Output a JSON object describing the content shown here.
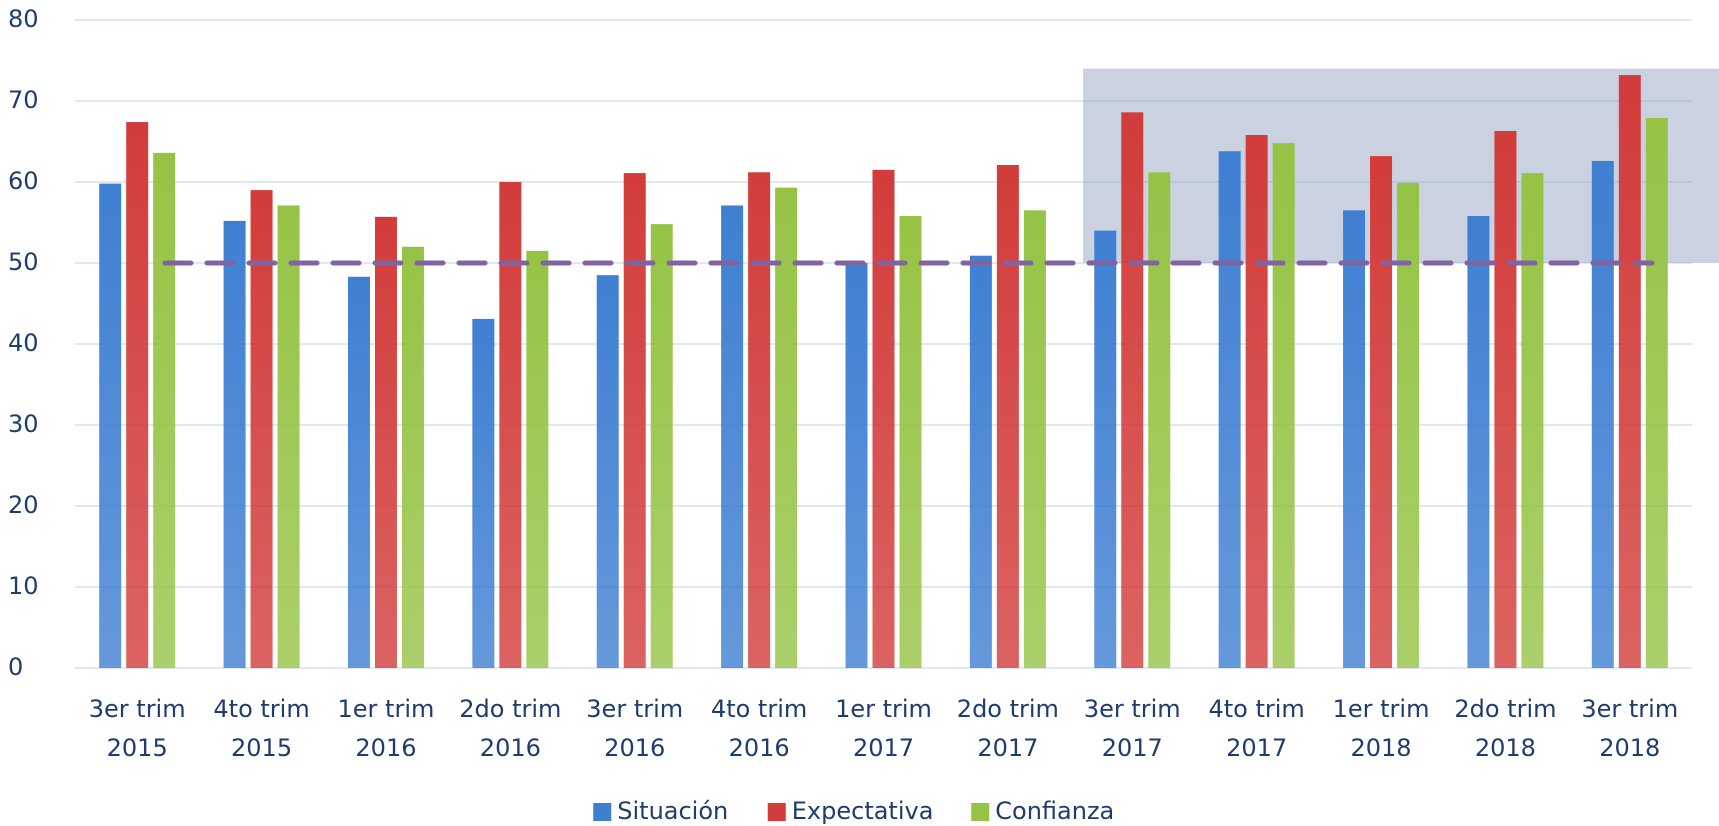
{
  "chart_data": {
    "type": "bar",
    "categories": [
      "3er trim 2015",
      "4to trim 2015",
      "1er trim 2016",
      "2do trim 2016",
      "3er trim 2016",
      "4to trim 2016",
      "1er trim 2017",
      "2do trim 2017",
      "3er trim 2017",
      "4to trim 2017",
      "1er trim 2018",
      "2do trim 2018",
      "3er trim 2018"
    ],
    "series": [
      {
        "name": "Situación",
        "color": "#3f7fd2",
        "values": [
          59.8,
          55.2,
          48.3,
          43.1,
          48.5,
          57.1,
          50.0,
          50.9,
          54.0,
          63.8,
          56.5,
          55.8,
          62.6
        ]
      },
      {
        "name": "Expectativa",
        "color": "#d23c3a",
        "values": [
          67.4,
          59.0,
          55.7,
          60.0,
          61.1,
          61.2,
          61.5,
          62.1,
          68.6,
          65.8,
          63.2,
          66.3,
          73.2
        ]
      },
      {
        "name": "Confianza",
        "color": "#96c345",
        "values": [
          63.6,
          57.1,
          52.0,
          51.5,
          54.8,
          59.3,
          55.8,
          56.5,
          61.2,
          64.8,
          59.9,
          61.1,
          67.9
        ]
      }
    ],
    "ylim": [
      0,
      80
    ],
    "yticks": [
      0,
      10,
      20,
      30,
      40,
      50,
      60,
      70,
      80
    ],
    "grid": true,
    "reference_line": {
      "value": 50,
      "color": "#8064a2"
    },
    "highlight": {
      "start": "3er trim 2017",
      "ylim": [
        50,
        74
      ],
      "color": "#8a9cbc"
    },
    "legend": "bottom"
  }
}
